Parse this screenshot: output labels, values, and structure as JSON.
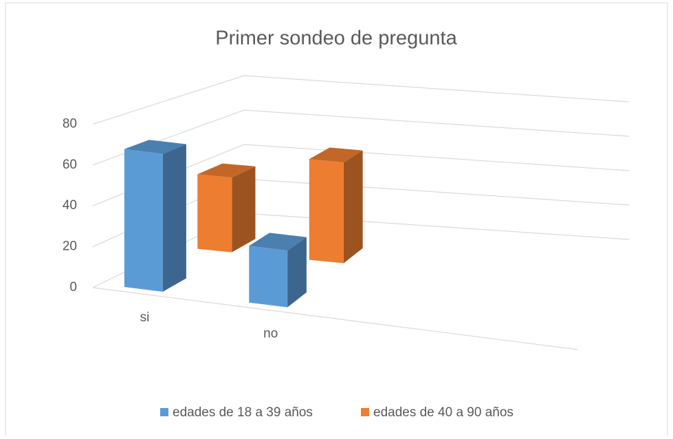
{
  "chart_data": {
    "type": "bar3d",
    "title": "Primer sondeo de pregunta",
    "categories": [
      "si",
      "no"
    ],
    "series": [
      {
        "name": "edades de 18 a 39 años",
        "color": "#5b9bd5",
        "values": [
          68,
          28
        ]
      },
      {
        "name": "edades de 40 a 90 años",
        "color": "#ed7d31",
        "values": [
          40,
          54
        ]
      }
    ],
    "ylim": [
      0,
      80
    ],
    "yticks": [
      0,
      20,
      40,
      60,
      80
    ],
    "grid": true,
    "legend": "bottom"
  }
}
